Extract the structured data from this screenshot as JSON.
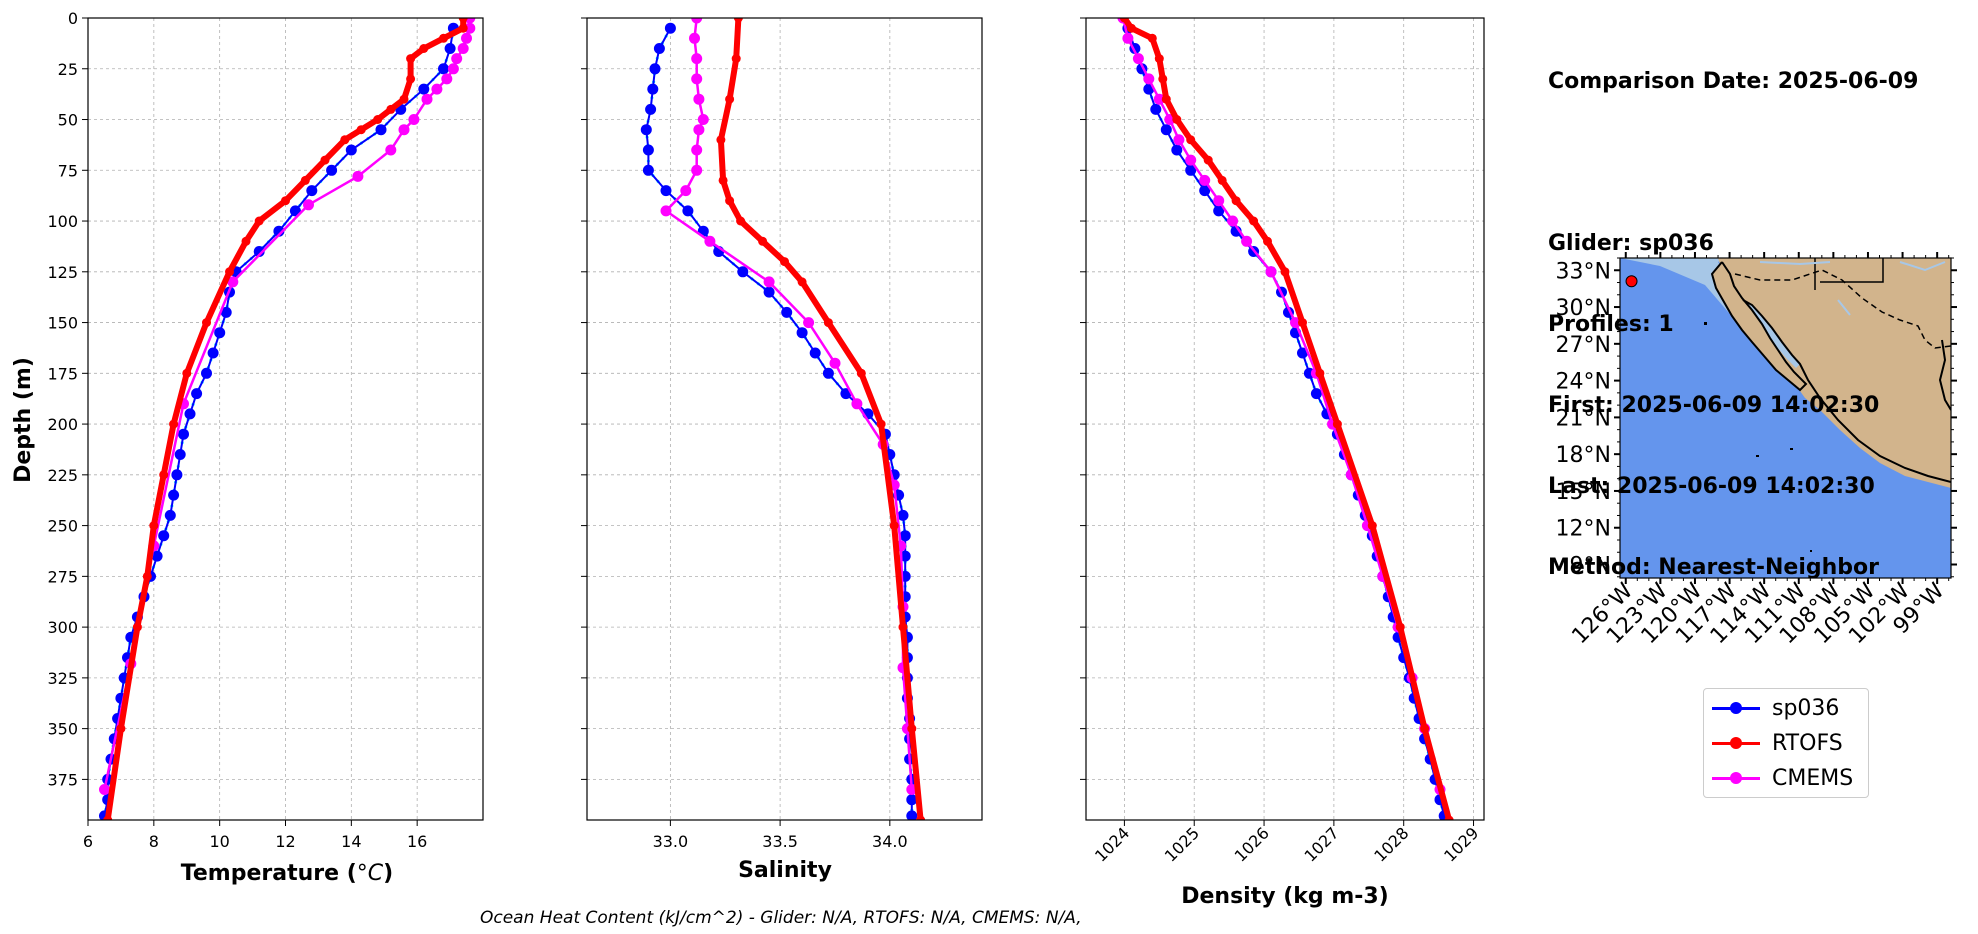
{
  "info": {
    "comparison_date": "Comparison Date: 2025-06-09",
    "glider": "Glider: sp036",
    "profiles": "Profiles: 1",
    "first": "First: 2025-06-09 14:02:30",
    "last": "Last: 2025-06-09 14:02:30",
    "method": "Method: Nearest-Neighbor"
  },
  "footnote": "Ocean Heat Content (kJ/cm^2) - Glider: N/A,  RTOFS: N/A,  CMEMS: N/A,",
  "colors": {
    "sp036": "#0000ff",
    "sp036_fill": "#00ffff",
    "RTOFS": "#ff0000",
    "CMEMS": "#ff00ff",
    "grid": "#b0b0b0",
    "ocean": "#6495ed",
    "shelf": "#a7c7e7",
    "land": "#d2b48c"
  },
  "legend": [
    {
      "name": "sp036",
      "color": "#0000ff"
    },
    {
      "name": "RTOFS",
      "color": "#ff0000"
    },
    {
      "name": "CMEMS",
      "color": "#ff00ff"
    }
  ],
  "chart_data": [
    {
      "type": "line",
      "xlabel": "Temperature ($^oC$)",
      "ylabel": "Depth (m)",
      "xlim": [
        6.0,
        18.0
      ],
      "ylim": [
        395,
        0
      ],
      "xticks": [
        6,
        8,
        10,
        12,
        14,
        16
      ],
      "yticks": [
        0,
        25,
        50,
        75,
        100,
        125,
        150,
        175,
        200,
        225,
        250,
        275,
        300,
        325,
        350,
        375
      ],
      "grid": true,
      "series": [
        {
          "name": "sp036",
          "y": [
            5,
            15,
            25,
            35,
            45,
            55,
            65,
            75,
            85,
            95,
            105,
            115,
            125,
            135,
            145,
            155,
            165,
            175,
            185,
            195,
            205,
            215,
            225,
            235,
            245,
            255,
            265,
            275,
            285,
            295,
            305,
            315,
            325,
            335,
            345,
            355,
            365,
            375,
            385,
            393
          ],
          "x": [
            17.1,
            17.0,
            16.8,
            16.2,
            15.5,
            14.9,
            14.0,
            13.4,
            12.8,
            12.3,
            11.8,
            11.2,
            10.5,
            10.3,
            10.2,
            10.0,
            9.8,
            9.6,
            9.3,
            9.1,
            8.9,
            8.8,
            8.7,
            8.6,
            8.5,
            8.3,
            8.1,
            7.9,
            7.7,
            7.5,
            7.3,
            7.2,
            7.1,
            7.0,
            6.9,
            6.8,
            6.7,
            6.6,
            6.6,
            6.5
          ]
        },
        {
          "name": "RTOFS",
          "y": [
            0,
            5,
            10,
            15,
            20,
            30,
            40,
            45,
            50,
            55,
            60,
            70,
            80,
            90,
            100,
            110,
            125,
            150,
            175,
            200,
            225,
            250,
            275,
            300,
            350,
            395
          ],
          "x": [
            17.4,
            17.4,
            16.8,
            16.2,
            15.8,
            15.8,
            15.6,
            15.2,
            14.8,
            14.3,
            13.8,
            13.2,
            12.6,
            12.0,
            11.2,
            10.8,
            10.3,
            9.6,
            9.0,
            8.6,
            8.3,
            8.0,
            7.8,
            7.5,
            7.0,
            6.6
          ]
        },
        {
          "name": "CMEMS",
          "y": [
            0,
            5,
            10,
            15,
            20,
            25,
            30,
            35,
            40,
            50,
            55,
            65,
            78,
            92,
            130,
            190,
            260,
            318,
            380
          ],
          "x": [
            17.6,
            17.6,
            17.5,
            17.4,
            17.2,
            17.1,
            16.9,
            16.6,
            16.3,
            15.9,
            15.6,
            15.2,
            14.2,
            12.7,
            10.4,
            8.9,
            8.0,
            7.3,
            6.5
          ]
        }
      ]
    },
    {
      "type": "line",
      "xlabel": "Salinity",
      "ylim": [
        395,
        0
      ],
      "xlim": [
        32.62,
        34.42
      ],
      "xticks": [
        33.0,
        33.5,
        34.0
      ],
      "grid": true,
      "series": [
        {
          "name": "sp036",
          "y": [
            5,
            15,
            25,
            35,
            45,
            55,
            65,
            75,
            85,
            95,
            105,
            115,
            125,
            135,
            145,
            155,
            165,
            175,
            185,
            195,
            205,
            215,
            225,
            235,
            245,
            255,
            265,
            275,
            285,
            295,
            305,
            315,
            325,
            335,
            345,
            355,
            365,
            375,
            385,
            393
          ],
          "x": [
            33.0,
            32.95,
            32.93,
            32.92,
            32.91,
            32.89,
            32.9,
            32.9,
            32.98,
            33.08,
            33.15,
            33.22,
            33.33,
            33.45,
            33.53,
            33.6,
            33.66,
            33.72,
            33.8,
            33.9,
            33.98,
            34.0,
            34.02,
            34.04,
            34.06,
            34.07,
            34.07,
            34.07,
            34.07,
            34.07,
            34.08,
            34.08,
            34.08,
            34.08,
            34.09,
            34.09,
            34.09,
            34.1,
            34.1,
            34.1
          ]
        },
        {
          "name": "RTOFS",
          "y": [
            0,
            20,
            40,
            60,
            80,
            90,
            100,
            110,
            120,
            130,
            150,
            175,
            200,
            250,
            300,
            350,
            395
          ],
          "x": [
            33.31,
            33.3,
            33.27,
            33.23,
            33.24,
            33.27,
            33.32,
            33.42,
            33.52,
            33.6,
            33.72,
            33.87,
            33.96,
            34.02,
            34.06,
            34.1,
            34.14
          ]
        },
        {
          "name": "CMEMS",
          "y": [
            0,
            10,
            20,
            30,
            40,
            50,
            55,
            65,
            75,
            85,
            95,
            110,
            130,
            150,
            170,
            190,
            210,
            230,
            260,
            290,
            320,
            350,
            380
          ],
          "x": [
            33.12,
            33.11,
            33.12,
            33.12,
            33.13,
            33.15,
            33.13,
            33.12,
            33.12,
            33.07,
            32.98,
            33.18,
            33.45,
            33.63,
            33.75,
            33.85,
            33.97,
            34.02,
            34.05,
            34.06,
            34.06,
            34.08,
            34.1
          ]
        }
      ]
    },
    {
      "type": "line",
      "xlabel": "Density (kg m-3)",
      "ylim": [
        395,
        0
      ],
      "xlim": [
        1023.45,
        1029.15
      ],
      "xticks": [
        1024,
        1025,
        1026,
        1027,
        1028,
        1029
      ],
      "grid": true,
      "series": [
        {
          "name": "sp036",
          "y": [
            5,
            15,
            25,
            35,
            45,
            55,
            65,
            75,
            85,
            95,
            105,
            115,
            125,
            135,
            145,
            155,
            165,
            175,
            185,
            195,
            205,
            215,
            225,
            235,
            245,
            255,
            265,
            275,
            285,
            295,
            305,
            315,
            325,
            335,
            345,
            355,
            365,
            375,
            385,
            393
          ],
          "x": [
            1024.05,
            1024.15,
            1024.25,
            1024.35,
            1024.45,
            1024.6,
            1024.75,
            1024.95,
            1025.15,
            1025.35,
            1025.6,
            1025.85,
            1026.1,
            1026.25,
            1026.35,
            1026.45,
            1026.55,
            1026.65,
            1026.75,
            1026.9,
            1027.05,
            1027.15,
            1027.25,
            1027.35,
            1027.45,
            1027.55,
            1027.62,
            1027.7,
            1027.78,
            1027.85,
            1027.92,
            1028.0,
            1028.08,
            1028.15,
            1028.22,
            1028.3,
            1028.38,
            1028.45,
            1028.52,
            1028.58
          ]
        },
        {
          "name": "RTOFS",
          "y": [
            0,
            5,
            10,
            20,
            30,
            40,
            50,
            60,
            70,
            80,
            90,
            100,
            110,
            125,
            150,
            175,
            200,
            250,
            300,
            350,
            395
          ],
          "x": [
            1024.0,
            1024.1,
            1024.4,
            1024.5,
            1024.55,
            1024.6,
            1024.75,
            1024.95,
            1025.2,
            1025.4,
            1025.6,
            1025.85,
            1026.05,
            1026.3,
            1026.55,
            1026.8,
            1027.05,
            1027.55,
            1027.95,
            1028.3,
            1028.65
          ]
        },
        {
          "name": "CMEMS",
          "y": [
            0,
            10,
            20,
            30,
            40,
            50,
            60,
            70,
            80,
            90,
            100,
            110,
            125,
            150,
            175,
            200,
            225,
            250,
            275,
            300,
            325,
            350,
            380
          ],
          "x": [
            1023.98,
            1024.05,
            1024.2,
            1024.35,
            1024.5,
            1024.65,
            1024.78,
            1024.95,
            1025.15,
            1025.35,
            1025.55,
            1025.75,
            1026.1,
            1026.45,
            1026.75,
            1026.98,
            1027.25,
            1027.48,
            1027.7,
            1027.92,
            1028.12,
            1028.3,
            1028.52
          ]
        }
      ]
    },
    {
      "type": "map",
      "lon_labels": [
        "126°W",
        "123°W",
        "120°W",
        "117°W",
        "114°W",
        "111°W",
        "108°W",
        "105°W",
        "102°W",
        "99°W"
      ],
      "lon_values": [
        -126,
        -123,
        -120,
        -117,
        -114,
        -111,
        -108,
        -105,
        -102,
        -99
      ],
      "lat_labels": [
        "33°N",
        "30°N",
        "27°N",
        "24°N",
        "21°N",
        "18°N",
        "15°N",
        "12°N",
        "9°N"
      ],
      "lat_values": [
        33,
        30,
        27,
        24,
        21,
        18,
        15,
        12,
        9
      ],
      "lon_range": [
        -126.5,
        -97.8
      ],
      "lat_range": [
        7.9,
        34.0
      ],
      "marker": {
        "lon": -125.5,
        "lat": 32.1,
        "color": "#ff0000"
      }
    }
  ]
}
